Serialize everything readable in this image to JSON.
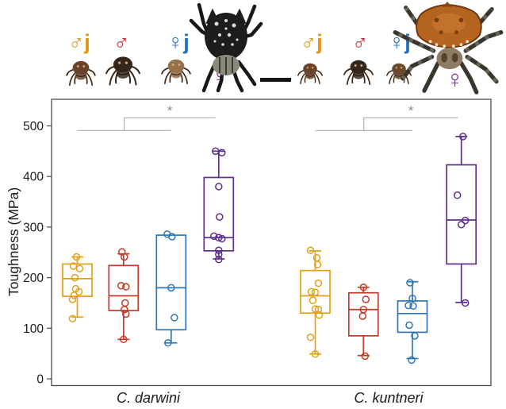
{
  "header": {
    "groups": [
      {
        "species": "C. darwini",
        "symbols": [
          {
            "name": "male-juvenile",
            "text": "♂j",
            "color": "#E59312"
          },
          {
            "name": "male",
            "text": "♂",
            "color": "#C8232C"
          },
          {
            "name": "female-juvenile",
            "text": "♀j",
            "color": "#1F6FBF"
          },
          {
            "name": "female",
            "text": "♀",
            "color": "#7C2D96"
          }
        ]
      },
      {
        "species": "C. kuntneri",
        "symbols": [
          {
            "name": "male-juvenile",
            "text": "♂j",
            "color": "#E59312"
          },
          {
            "name": "male",
            "text": "♂",
            "color": "#C8232C"
          },
          {
            "name": "female-juvenile",
            "text": "♀j",
            "color": "#1F6FBF"
          },
          {
            "name": "female",
            "text": "♀",
            "color": "#7C2D96"
          }
        ]
      }
    ],
    "scale_bar": "scale bar"
  },
  "chart_data": {
    "type": "boxplot",
    "title": "",
    "ylabel": "Toughness (MPa)",
    "xlabel": "",
    "ylim": [
      -14,
      552
    ],
    "yticks": [
      0,
      100,
      200,
      300,
      400,
      500
    ],
    "grid": false,
    "x_groups": [
      {
        "label": "C. darwini"
      },
      {
        "label": "C. kuntneri"
      }
    ],
    "series_labels": [
      "male juvenile",
      "male",
      "female juvenile",
      "female"
    ],
    "colors": {
      "male_juvenile": "#E2A117",
      "male": "#C43A28",
      "female_juvenile": "#2E77B8",
      "female": "#5F2E8E",
      "axis": "#4d4d4d",
      "bracket": "#a6a6a6",
      "star": "#8c8c8c"
    },
    "boxes": [
      {
        "group": "C. darwini",
        "sex": "male juvenile",
        "color": "#E2A117",
        "whisker_low": 122,
        "q1": 163,
        "median": 198,
        "q3": 227,
        "whisker_high": 241,
        "points": [
          241,
          223,
          218,
          200,
          178,
          172,
          165,
          157,
          119
        ],
        "jitter": [
          -1,
          -5,
          3,
          -3,
          -2,
          2,
          -4,
          -6,
          -6
        ]
      },
      {
        "group": "C. darwini",
        "sex": "male",
        "color": "#C43A28",
        "whisker_low": 78,
        "q1": 135,
        "median": 164,
        "q3": 224,
        "whisker_high": 247,
        "points": [
          251,
          241,
          184,
          182,
          150,
          137,
          128,
          78
        ],
        "jitter": [
          -2,
          1,
          -3,
          3,
          2,
          1,
          3,
          0
        ]
      },
      {
        "group": "C. darwini",
        "sex": "female juvenile",
        "color": "#2E77B8",
        "whisker_low": 71,
        "q1": 97,
        "median": 180,
        "q3": 284,
        "whisker_high": 284,
        "points": [
          286,
          281,
          180,
          121,
          71
        ],
        "jitter": [
          -5,
          1,
          0,
          4,
          -4
        ]
      },
      {
        "group": "C. darwini",
        "sex": "female",
        "color": "#5F2E8E",
        "whisker_low": 237,
        "q1": 253,
        "median": 279,
        "q3": 398,
        "whisker_high": 450,
        "points": [
          450,
          447,
          380,
          320,
          282,
          279,
          277,
          254,
          246,
          236
        ],
        "jitter": [
          -4,
          4,
          0,
          1,
          -6,
          0,
          4,
          0,
          0,
          0
        ]
      },
      {
        "group": "C. kuntneri",
        "sex": "male juvenile",
        "color": "#E2A117",
        "whisker_low": 49,
        "q1": 130,
        "median": 164,
        "q3": 214,
        "whisker_high": 253,
        "points": [
          254,
          239,
          226,
          189,
          172,
          171,
          155,
          138,
          137,
          126,
          82,
          49
        ],
        "jitter": [
          -6,
          2,
          3,
          4,
          -5,
          0,
          -3,
          0,
          4,
          5,
          -6,
          0
        ]
      },
      {
        "group": "C. kuntneri",
        "sex": "male",
        "color": "#C43A28",
        "whisker_low": 46,
        "q1": 85,
        "median": 137,
        "q3": 170,
        "whisker_high": 181,
        "points": [
          181,
          157,
          137,
          124,
          45
        ],
        "jitter": [
          0,
          3,
          0,
          -1,
          2
        ]
      },
      {
        "group": "C. kuntneri",
        "sex": "female juvenile",
        "color": "#2E77B8",
        "whisker_low": 40,
        "q1": 92,
        "median": 129,
        "q3": 154,
        "whisker_high": 192,
        "points": [
          190,
          159,
          145,
          144,
          106,
          85,
          37
        ],
        "jitter": [
          -3,
          0,
          -5,
          1,
          -4,
          3,
          -1
        ]
      },
      {
        "group": "C. kuntneri",
        "sex": "female",
        "color": "#5F2E8E",
        "whisker_low": 151,
        "q1": 227,
        "median": 314,
        "q3": 423,
        "whisker_high": 479,
        "points": [
          479,
          363,
          313,
          305,
          150
        ],
        "jitter": [
          2,
          -5,
          5,
          0,
          5
        ]
      }
    ],
    "significance": [
      {
        "group": "C. darwini",
        "spans_slots": [
          0,
          2
        ],
        "to_slot": 3,
        "lower_v": 491,
        "upper_v": 516,
        "label": "*",
        "meaning": "juveniles and males vs adult female"
      },
      {
        "group": "C. kuntneri",
        "spans_slots": [
          4,
          6
        ],
        "to_slot": 7,
        "lower_v": 491,
        "upper_v": 516,
        "label": "*",
        "meaning": "juveniles and males vs adult female"
      }
    ],
    "legend": "none"
  }
}
